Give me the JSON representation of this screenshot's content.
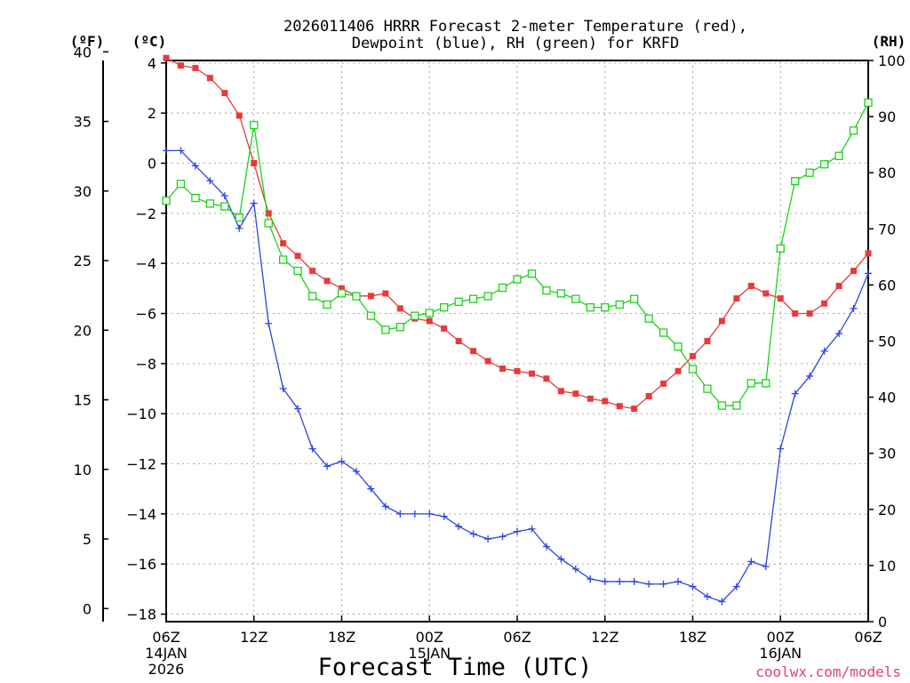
{
  "chart_data": {
    "type": "line",
    "title_line1": "2026011406 HRRR Forecast 2-meter Temperature (red),",
    "title_line2": "Dewpoint (blue), RH (green) for KRFD",
    "xlabel": "Forecast Time (UTC)",
    "credit": "coolwx.com/models",
    "left_outer_unit": "(ºF)",
    "left_inner_unit": "(ºC)",
    "right_unit": "(RH)",
    "x_range_hours": [
      0,
      48
    ],
    "celsius_range": [
      -18.3,
      4.1
    ],
    "fahrenheit_ticks": [
      "0",
      "5",
      "10",
      "15",
      "20",
      "25",
      "30",
      "35",
      "40"
    ],
    "celsius_ticks": [
      "-18",
      "-16",
      "-14",
      "-12",
      "-10",
      "-8",
      "-6",
      "-4",
      "-2",
      "0",
      "2",
      "4"
    ],
    "rh_ticks": [
      "0",
      "10",
      "20",
      "30",
      "40",
      "50",
      "60",
      "70",
      "80",
      "90",
      "100"
    ],
    "x_ticks": [
      {
        "hour": 0,
        "label": "06Z",
        "sub1": "14JAN",
        "sub2": "2026"
      },
      {
        "hour": 6,
        "label": "12Z",
        "sub1": "",
        "sub2": ""
      },
      {
        "hour": 12,
        "label": "18Z",
        "sub1": "",
        "sub2": ""
      },
      {
        "hour": 18,
        "label": "00Z",
        "sub1": "15JAN",
        "sub2": ""
      },
      {
        "hour": 24,
        "label": "06Z",
        "sub1": "",
        "sub2": ""
      },
      {
        "hour": 30,
        "label": "12Z",
        "sub1": "",
        "sub2": ""
      },
      {
        "hour": 36,
        "label": "18Z",
        "sub1": "",
        "sub2": ""
      },
      {
        "hour": 42,
        "label": "00Z",
        "sub1": "16JAN",
        "sub2": ""
      },
      {
        "hour": 48,
        "label": "06Z",
        "sub1": "",
        "sub2": ""
      }
    ],
    "series": [
      {
        "name": "Temperature",
        "unit": "C",
        "color": "#e83a3a",
        "marker": "filled-square",
        "values": [
          4.2,
          3.9,
          3.8,
          3.4,
          2.8,
          1.9,
          0.0,
          -2.0,
          -3.2,
          -3.7,
          -4.3,
          -4.7,
          -5.0,
          -5.3,
          -5.3,
          -5.2,
          -5.8,
          -6.2,
          -6.3,
          -6.6,
          -7.1,
          -7.5,
          -7.9,
          -8.2,
          -8.3,
          -8.4,
          -8.6,
          -9.1,
          -9.2,
          -9.4,
          -9.5,
          -9.7,
          -9.8,
          -9.3,
          -8.8,
          -8.3,
          -7.7,
          -7.1,
          -6.3,
          -5.4,
          -4.9,
          -5.2,
          -5.4,
          -6.0,
          -6.0,
          -5.6,
          -4.9,
          -4.3,
          -3.6
        ]
      },
      {
        "name": "Dewpoint",
        "unit": "C",
        "color": "#2a46e0",
        "marker": "plus",
        "values": [
          0.5,
          0.5,
          -0.1,
          -0.7,
          -1.3,
          -2.6,
          -1.6,
          -6.4,
          -9.0,
          -9.8,
          -11.4,
          -12.1,
          -11.9,
          -12.3,
          -13.0,
          -13.7,
          -14.0,
          -14.0,
          -14.0,
          -14.1,
          -14.5,
          -14.8,
          -15.0,
          -14.9,
          -14.7,
          -14.6,
          -15.3,
          -15.8,
          -16.2,
          -16.6,
          -16.7,
          -16.7,
          -16.7,
          -16.8,
          -16.8,
          -16.7,
          -16.9,
          -17.3,
          -17.5,
          -16.9,
          -15.9,
          -16.1,
          -11.4,
          -9.2,
          -8.5,
          -7.5,
          -6.8,
          -5.8,
          -4.4
        ]
      },
      {
        "name": "RH",
        "unit": "%",
        "color": "#18d418",
        "marker": "open-square",
        "values": [
          75,
          78,
          75.5,
          74.5,
          74,
          72,
          88.5,
          71,
          64.5,
          62.5,
          58,
          56.5,
          58.5,
          58,
          54.5,
          52,
          52.5,
          54.5,
          55,
          56,
          57,
          57.5,
          58,
          59.5,
          61,
          62,
          59,
          58.5,
          57.5,
          56,
          56,
          56.5,
          57.5,
          54,
          51.5,
          49,
          45,
          41.5,
          38.5,
          38.5,
          42.5,
          42.5,
          66.5,
          78.5,
          80,
          81.5,
          83,
          87.5,
          92.5
        ]
      }
    ]
  }
}
